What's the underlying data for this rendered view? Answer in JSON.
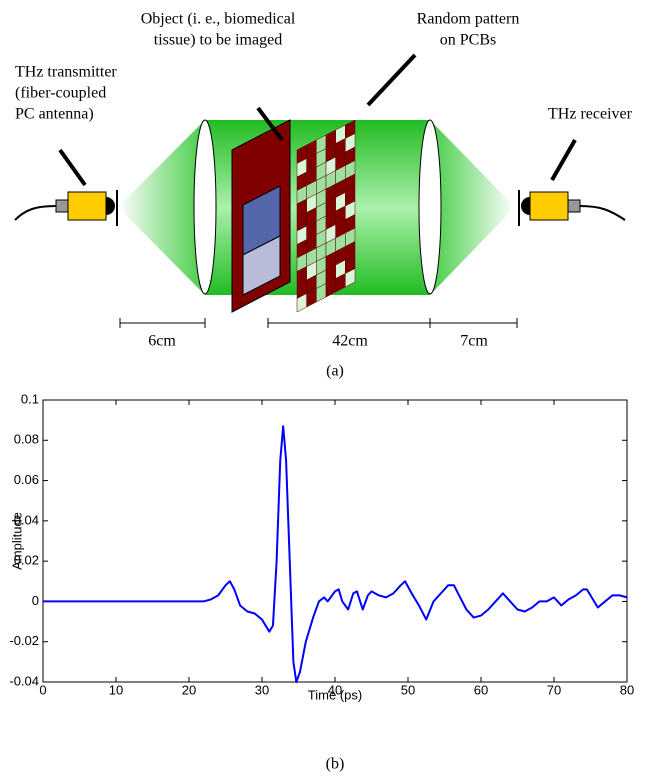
{
  "diagram": {
    "transmitter": [
      "THz transmitter",
      "(fiber-coupled",
      "PC antenna)"
    ],
    "object": [
      "Object (i. e., biomedical",
      "tissue) to be imaged"
    ],
    "pattern": [
      "Random pattern",
      "on PCBs"
    ],
    "receiver": "THz receiver",
    "distances": [
      "6cm",
      "42cm",
      "7cm"
    ]
  },
  "captions": [
    "(a)",
    "(b)"
  ],
  "chart_data": {
    "type": "line",
    "xlabel": "Time (ps)",
    "ylabel": "Amplitude",
    "color": "#0000ff",
    "xlim": [
      0,
      80
    ],
    "ylim": [
      -0.04,
      0.1
    ],
    "xticks": [
      0,
      10,
      20,
      30,
      40,
      50,
      60,
      70,
      80
    ],
    "yticks": [
      -0.04,
      -0.02,
      0,
      0.02,
      0.04,
      0.06,
      0.08,
      0.1
    ],
    "x": [
      0,
      2,
      4,
      6,
      8,
      10,
      12,
      14,
      16,
      18,
      20,
      22,
      23,
      24,
      25,
      25.6,
      26.2,
      27,
      28,
      29,
      30,
      31,
      31.5,
      32,
      32.5,
      32.9,
      33.3,
      33.8,
      34.3,
      34.7,
      35.2,
      36,
      37,
      37.8,
      38.5,
      39,
      40,
      40.5,
      41,
      41.8,
      42.5,
      43,
      43.8,
      44.5,
      45,
      46,
      47,
      48,
      49,
      49.6,
      50.5,
      51.5,
      52.5,
      53.5,
      54.5,
      55.5,
      56.3,
      57,
      58,
      59,
      60,
      61,
      62,
      63,
      64,
      65,
      66,
      67,
      68,
      69,
      70,
      71,
      72,
      73,
      74,
      74.5,
      75,
      76,
      77,
      78,
      79,
      80
    ],
    "values": [
      0,
      0,
      0,
      0,
      0,
      0,
      0,
      0,
      0,
      0,
      0,
      0,
      0.001,
      0.003,
      0.008,
      0.01,
      0.006,
      -0.002,
      -0.005,
      -0.006,
      -0.009,
      -0.015,
      -0.012,
      0.02,
      0.07,
      0.087,
      0.07,
      0.02,
      -0.03,
      -0.04,
      -0.035,
      -0.02,
      -0.008,
      0,
      0.002,
      0,
      0.005,
      0.006,
      0,
      -0.004,
      0.004,
      0.005,
      -0.004,
      0.003,
      0.005,
      0.003,
      0.002,
      0.004,
      0.008,
      0.01,
      0.004,
      -0.002,
      -0.009,
      0,
      0.004,
      0.008,
      0.008,
      0.003,
      -0.004,
      -0.008,
      -0.007,
      -0.004,
      0,
      0.004,
      0,
      -0.004,
      -0.005,
      -0.003,
      0,
      0,
      0.002,
      -0.002,
      0.001,
      0.003,
      0.006,
      0.006,
      0.003,
      -0.003,
      0,
      0.003,
      0.003,
      0.002
    ]
  }
}
